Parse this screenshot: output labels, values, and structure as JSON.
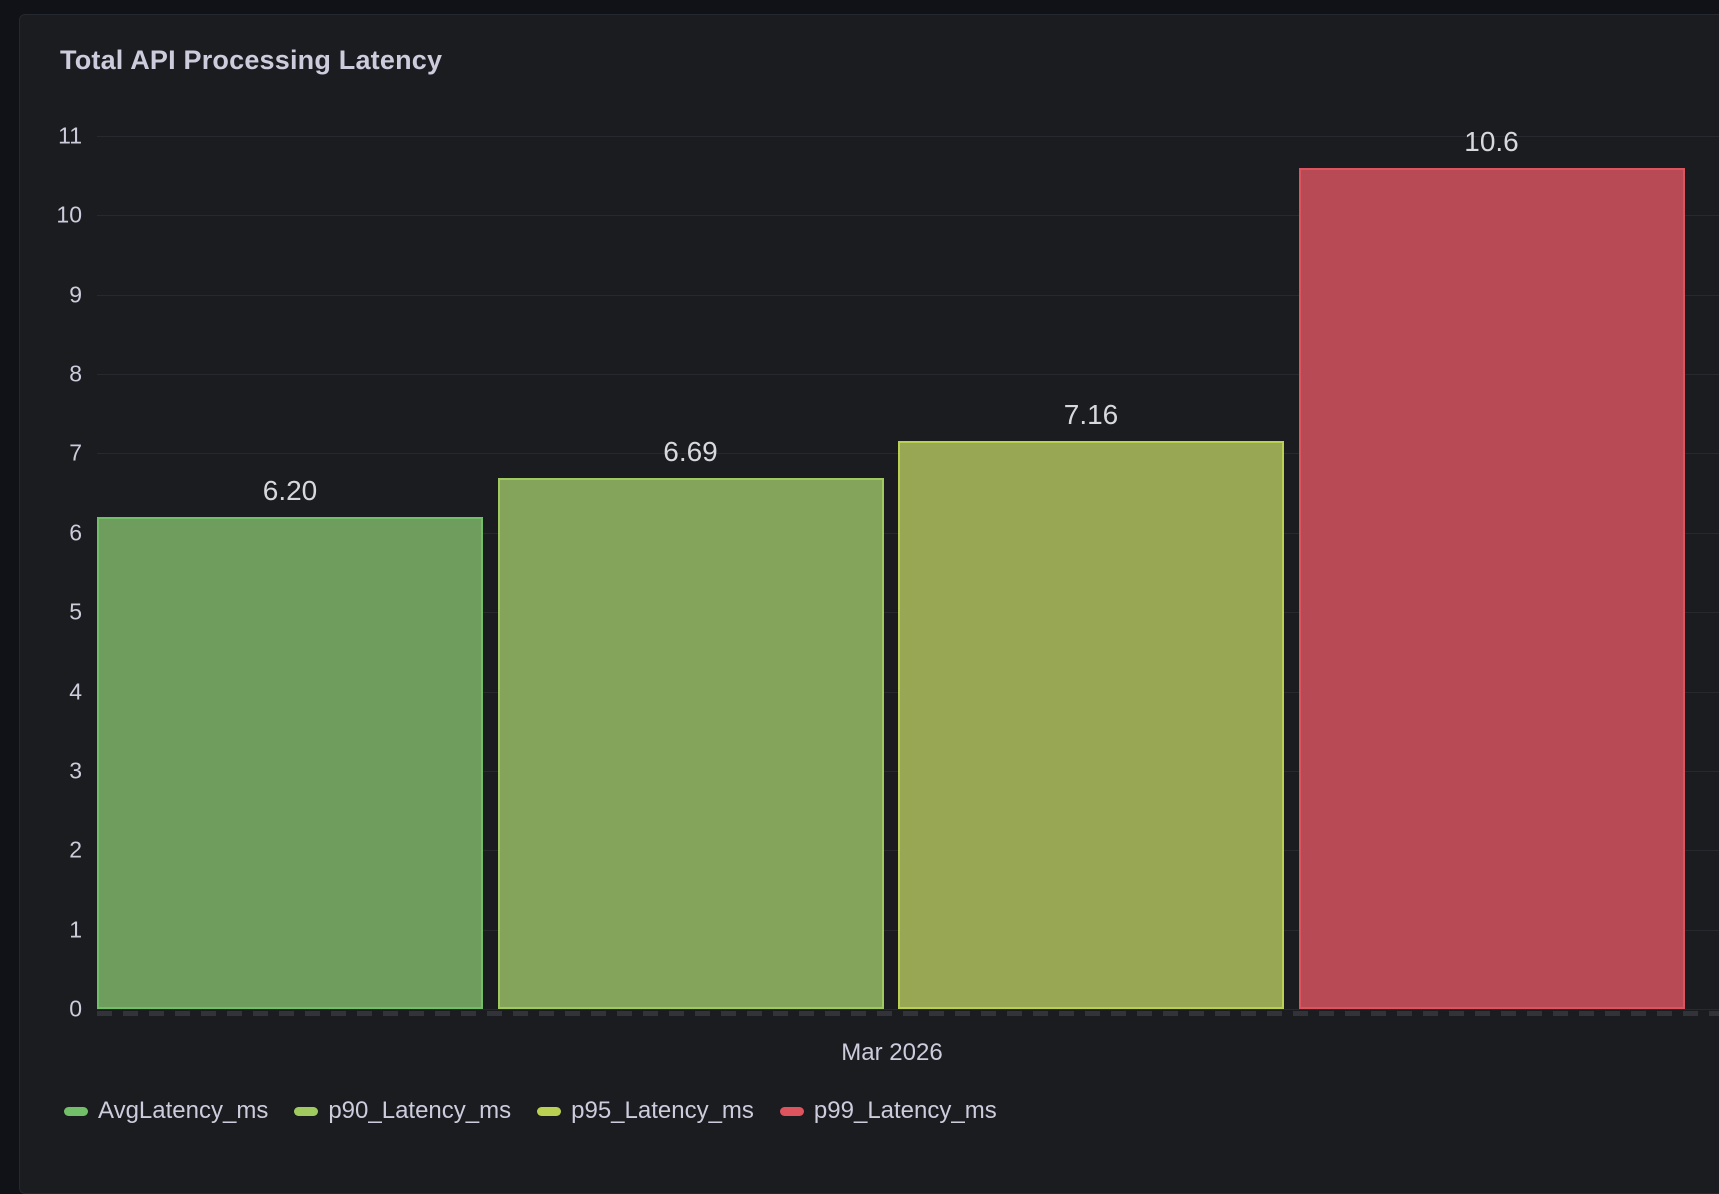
{
  "panel": {
    "title": "Total API Processing Latency"
  },
  "chart_data": {
    "type": "bar",
    "title": "Total API Processing Latency",
    "categories": [
      "Mar 2026"
    ],
    "xlabel": "Mar 2026",
    "ylabel": "",
    "ylim": [
      0,
      11
    ],
    "y_ticks": [
      0,
      1,
      2,
      3,
      4,
      5,
      6,
      7,
      8,
      9,
      10,
      11
    ],
    "grid": true,
    "legend_position": "bottom",
    "series": [
      {
        "name": "AvgLatency_ms",
        "value": 6.2,
        "value_label": "6.20",
        "color": "#73bf69",
        "fill": "#6f9d5e"
      },
      {
        "name": "p90_Latency_ms",
        "value": 6.69,
        "value_label": "6.69",
        "color": "#a0ca60",
        "fill": "#83a45a"
      },
      {
        "name": "p95_Latency_ms",
        "value": 7.16,
        "value_label": "7.16",
        "color": "#b9d053",
        "fill": "#98a754"
      },
      {
        "name": "p99_Latency_ms",
        "value": 10.6,
        "value_label": "10.6",
        "color": "#de545e",
        "fill": "#b84a55"
      }
    ]
  },
  "colors": {
    "page_bg": "#111217",
    "panel_bg": "#1a1c20",
    "panel_border": "#25282e",
    "text": "#ccccdc",
    "value_text": "#d7d8de",
    "gridline": "rgba(204,204,220,0.08)"
  }
}
